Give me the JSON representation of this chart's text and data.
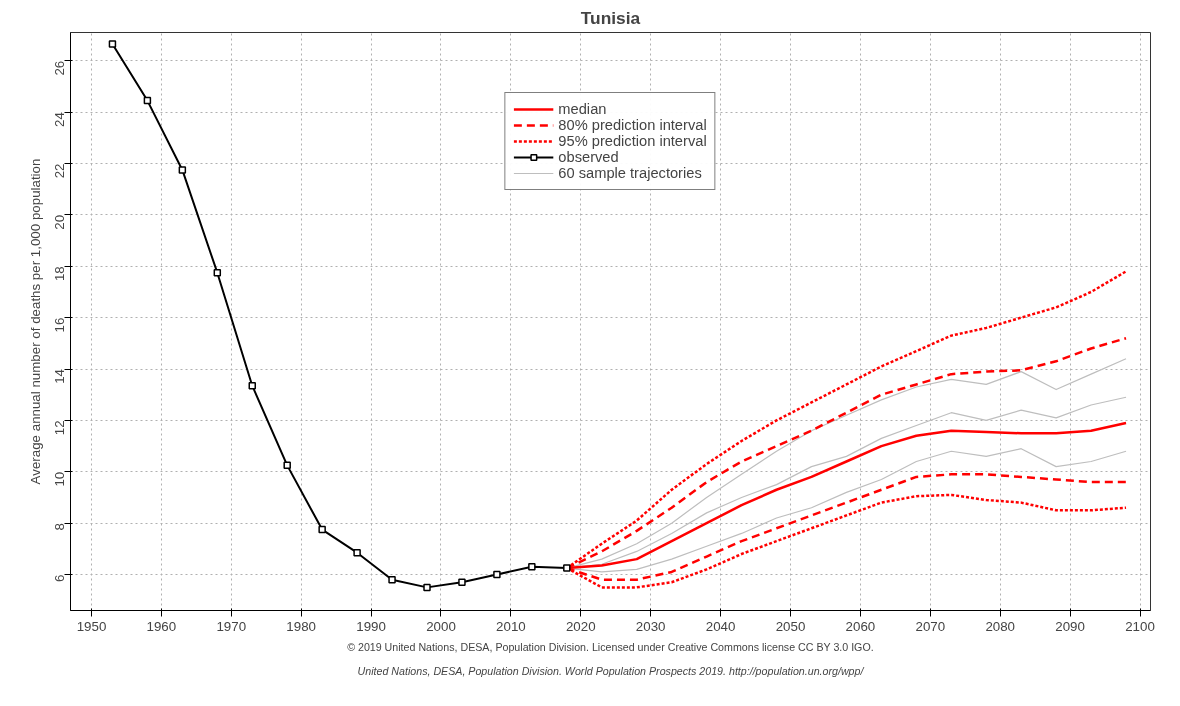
{
  "chart_data": {
    "type": "line",
    "title": "Tunisia",
    "ylabel": "Average annual number of deaths per 1,000 population",
    "xlim": [
      1947,
      2101.5
    ],
    "xticks": [
      1950,
      1960,
      1970,
      1980,
      1990,
      2000,
      2010,
      2020,
      2030,
      2040,
      2050,
      2060,
      2070,
      2080,
      2090,
      2100
    ],
    "ylim": [
      4.6,
      27.1
    ],
    "yticks": [
      6,
      8,
      10,
      12,
      14,
      16,
      18,
      20,
      22,
      24,
      26
    ],
    "grid": true,
    "legend": "top",
    "line_style": "solid",
    "marker": "none",
    "series": [
      {
        "name": "60 sample trajectories",
        "color": "#bebebe",
        "x": [
          2018,
          2023,
          2028,
          2033,
          2038,
          2043,
          2048,
          2053,
          2058,
          2063,
          2068,
          2073,
          2078,
          2083,
          2088,
          2093,
          2098
        ],
        "values": [
          6.25,
          6.6,
          7.2,
          8.0,
          9.0,
          9.9,
          10.8,
          11.6,
          12.2,
          12.8,
          13.3,
          13.6,
          13.4,
          13.9,
          13.2,
          13.8,
          14.4
        ]
      },
      {
        "color": "#bebebe",
        "x": [
          2018,
          2023,
          2028,
          2033,
          2038,
          2043,
          2048,
          2053,
          2058,
          2063,
          2068,
          2073,
          2078,
          2083,
          2088,
          2093,
          2098
        ],
        "values": [
          6.25,
          6.1,
          6.2,
          6.6,
          7.1,
          7.6,
          8.2,
          8.6,
          9.2,
          9.7,
          10.4,
          10.8,
          10.6,
          10.9,
          10.2,
          10.4,
          10.8
        ]
      },
      {
        "color": "#bebebe",
        "x": [
          2018,
          2023,
          2028,
          2033,
          2038,
          2043,
          2048,
          2053,
          2058,
          2063,
          2068,
          2073,
          2078,
          2083,
          2088,
          2093,
          2098
        ],
        "values": [
          6.25,
          6.4,
          6.9,
          7.6,
          8.4,
          9.0,
          9.5,
          10.2,
          10.6,
          11.3,
          11.8,
          12.3,
          12.0,
          12.4,
          12.1,
          12.6,
          12.9
        ]
      },
      {
        "name": "median",
        "color": "#ff0000",
        "line_style": "solid",
        "x": [
          2018,
          2023,
          2028,
          2033,
          2038,
          2043,
          2048,
          2053,
          2058,
          2063,
          2068,
          2073,
          2078,
          2083,
          2088,
          2093,
          2098
        ],
        "values": [
          6.25,
          6.35,
          6.6,
          7.3,
          8.0,
          8.7,
          9.3,
          9.8,
          10.4,
          11.0,
          11.4,
          11.6,
          11.55,
          11.5,
          11.5,
          11.6,
          11.9
        ]
      },
      {
        "name": "80% prediction interval",
        "color": "#ff0000",
        "line_style": "dashed",
        "x": [
          2018,
          2023,
          2028,
          2033,
          2038,
          2043,
          2048,
          2053,
          2058,
          2063,
          2068,
          2073,
          2078,
          2083,
          2088,
          2093,
          2098
        ],
        "values": [
          6.25,
          6.9,
          7.7,
          8.6,
          9.6,
          10.4,
          11.0,
          11.6,
          12.3,
          13.0,
          13.4,
          13.8,
          13.9,
          13.95,
          14.3,
          14.8,
          15.2
        ]
      },
      {
        "color": "#ff0000",
        "line_style": "dashed",
        "x": [
          2018,
          2023,
          2028,
          2033,
          2038,
          2043,
          2048,
          2053,
          2058,
          2063,
          2068,
          2073,
          2078,
          2083,
          2088,
          2093,
          2098
        ],
        "values": [
          6.25,
          5.8,
          5.8,
          6.1,
          6.7,
          7.3,
          7.8,
          8.3,
          8.8,
          9.3,
          9.8,
          9.9,
          9.9,
          9.8,
          9.7,
          9.6,
          9.6
        ]
      },
      {
        "name": "95% prediction interval",
        "color": "#ff0000",
        "line_style": "dotted",
        "x": [
          2018,
          2023,
          2028,
          2033,
          2038,
          2043,
          2048,
          2053,
          2058,
          2063,
          2068,
          2073,
          2078,
          2083,
          2088,
          2093,
          2098
        ],
        "values": [
          6.25,
          7.2,
          8.1,
          9.3,
          10.3,
          11.2,
          12.0,
          12.7,
          13.4,
          14.1,
          14.7,
          15.3,
          15.6,
          16.0,
          16.4,
          17.0,
          17.8
        ]
      },
      {
        "color": "#ff0000",
        "line_style": "dotted",
        "x": [
          2018,
          2023,
          2028,
          2033,
          2038,
          2043,
          2048,
          2053,
          2058,
          2063,
          2068,
          2073,
          2078,
          2083,
          2088,
          2093,
          2098
        ],
        "values": [
          6.25,
          5.5,
          5.5,
          5.7,
          6.2,
          6.8,
          7.3,
          7.8,
          8.3,
          8.8,
          9.05,
          9.1,
          8.9,
          8.8,
          8.5,
          8.5,
          8.6
        ]
      },
      {
        "name": "observed",
        "color": "#000000",
        "line_style": "solid",
        "marker": "square",
        "x": [
          1953,
          1958,
          1963,
          1968,
          1973,
          1978,
          1983,
          1988,
          1993,
          1998,
          2003,
          2008,
          2013,
          2018
        ],
        "values": [
          26.65,
          24.45,
          21.75,
          17.75,
          13.35,
          10.25,
          7.75,
          6.85,
          5.8,
          5.5,
          5.7,
          6.0,
          6.3,
          6.25
        ]
      }
    ],
    "annotations": [
      "© 2019 United Nations, DESA, Population Division. Licensed under Creative Commons license CC BY 3.0 IGO.",
      "United Nations, DESA, Population Division. World Population Prospects 2019. http://population.un.org/wpp/"
    ]
  }
}
